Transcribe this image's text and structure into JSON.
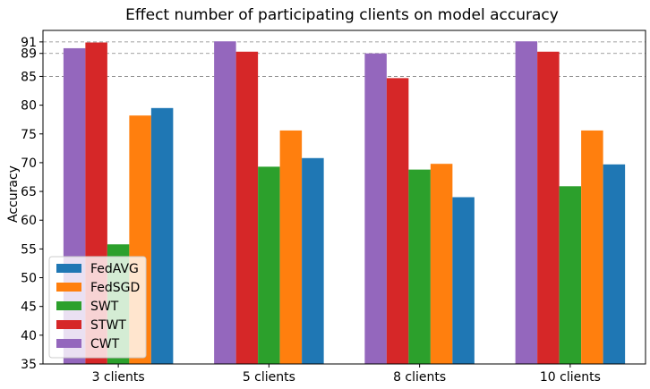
{
  "chart_data": {
    "type": "bar",
    "title": "Effect number of participating clients on model accuracy",
    "xlabel": "",
    "ylabel": "Accuracy",
    "categories": [
      "3 clients",
      "5 clients",
      "8 clients",
      "10 clients"
    ],
    "ylim": [
      35,
      93
    ],
    "yticks": [
      35,
      40,
      45,
      50,
      55,
      60,
      65,
      70,
      75,
      80,
      85,
      89,
      91
    ],
    "reference_lines": [
      85,
      89,
      91
    ],
    "reference_line_style": "dashed",
    "bar_order": [
      "CWT",
      "STWT",
      "SWT",
      "FedSGD",
      "FedAVG"
    ],
    "series": [
      {
        "name": "FedAVG",
        "color": "#1f77b4",
        "values": [
          79.5,
          70.8,
          64.0,
          69.7
        ]
      },
      {
        "name": "FedSGD",
        "color": "#ff7f0e",
        "values": [
          78.2,
          75.6,
          69.8,
          75.6
        ]
      },
      {
        "name": "SWT",
        "color": "#2ca02c",
        "values": [
          55.8,
          69.3,
          68.8,
          65.9
        ]
      },
      {
        "name": "STWT",
        "color": "#d62728",
        "values": [
          90.9,
          89.3,
          84.7,
          89.3
        ]
      },
      {
        "name": "CWT",
        "color": "#9467bd",
        "values": [
          89.9,
          91.1,
          89.0,
          91.1
        ]
      }
    ],
    "legend": {
      "position": "lower-left",
      "order": [
        "FedAVG",
        "FedSGD",
        "SWT",
        "STWT",
        "CWT"
      ]
    },
    "grid": false
  }
}
